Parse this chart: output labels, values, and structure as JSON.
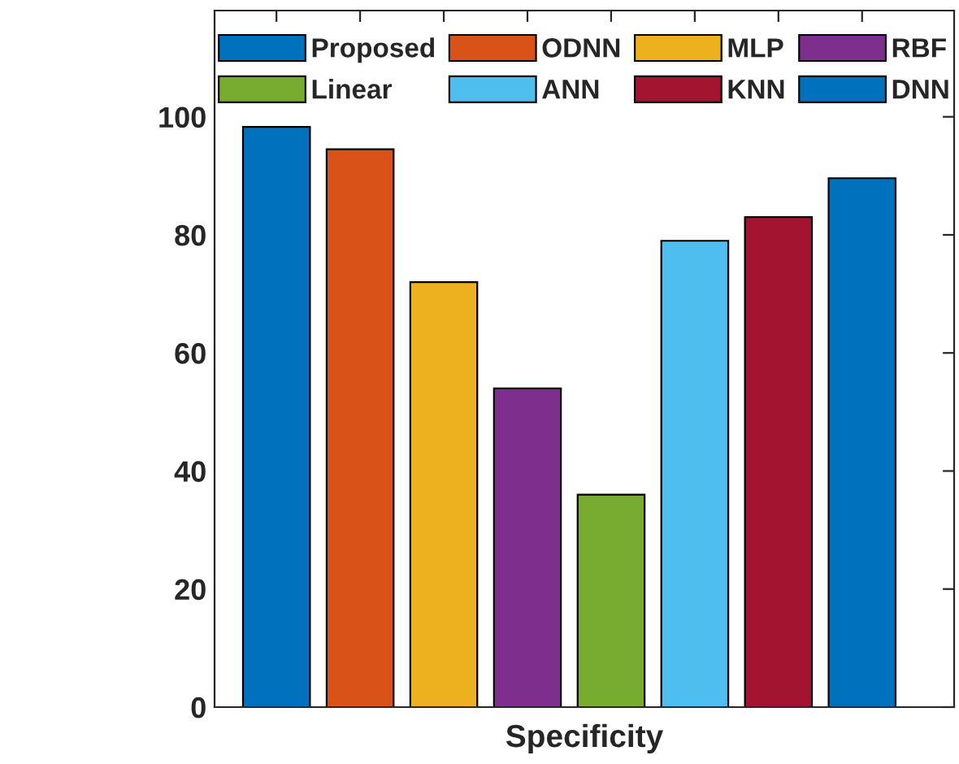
{
  "chart_data": {
    "type": "bar",
    "xlabel": "Specificity",
    "categories": [
      null,
      null,
      null,
      null,
      null,
      null,
      null,
      null
    ],
    "series": [
      {
        "name": "Proposed",
        "color": "#0072bd",
        "values": [
          98.3,
          null,
          null,
          null,
          null,
          null,
          null,
          null
        ]
      },
      {
        "name": "ODNN",
        "color": "#d95319",
        "values": [
          null,
          94.5,
          null,
          null,
          null,
          null,
          null,
          null
        ]
      },
      {
        "name": "MLP",
        "color": "#edb120",
        "values": [
          null,
          null,
          72,
          null,
          null,
          null,
          null,
          null
        ]
      },
      {
        "name": "RBF",
        "color": "#7e2f8e",
        "values": [
          null,
          null,
          null,
          54,
          null,
          null,
          null,
          null
        ]
      },
      {
        "name": "Linear",
        "color": "#77ac30",
        "values": [
          null,
          null,
          null,
          null,
          36,
          null,
          null,
          null
        ]
      },
      {
        "name": "ANN",
        "color": "#4dbeee",
        "values": [
          null,
          null,
          null,
          null,
          null,
          79,
          null,
          null
        ]
      },
      {
        "name": "KNN",
        "color": "#a2142f",
        "values": [
          null,
          null,
          null,
          null,
          null,
          null,
          83,
          null
        ]
      },
      {
        "name": "DNN",
        "color": "#0072bd",
        "values": [
          null,
          null,
          null,
          null,
          null,
          null,
          null,
          89.6
        ]
      }
    ],
    "ylim": [
      0,
      118
    ],
    "yticks": [
      0,
      20,
      40,
      60,
      80,
      100
    ],
    "grid": false,
    "legend": "top"
  }
}
